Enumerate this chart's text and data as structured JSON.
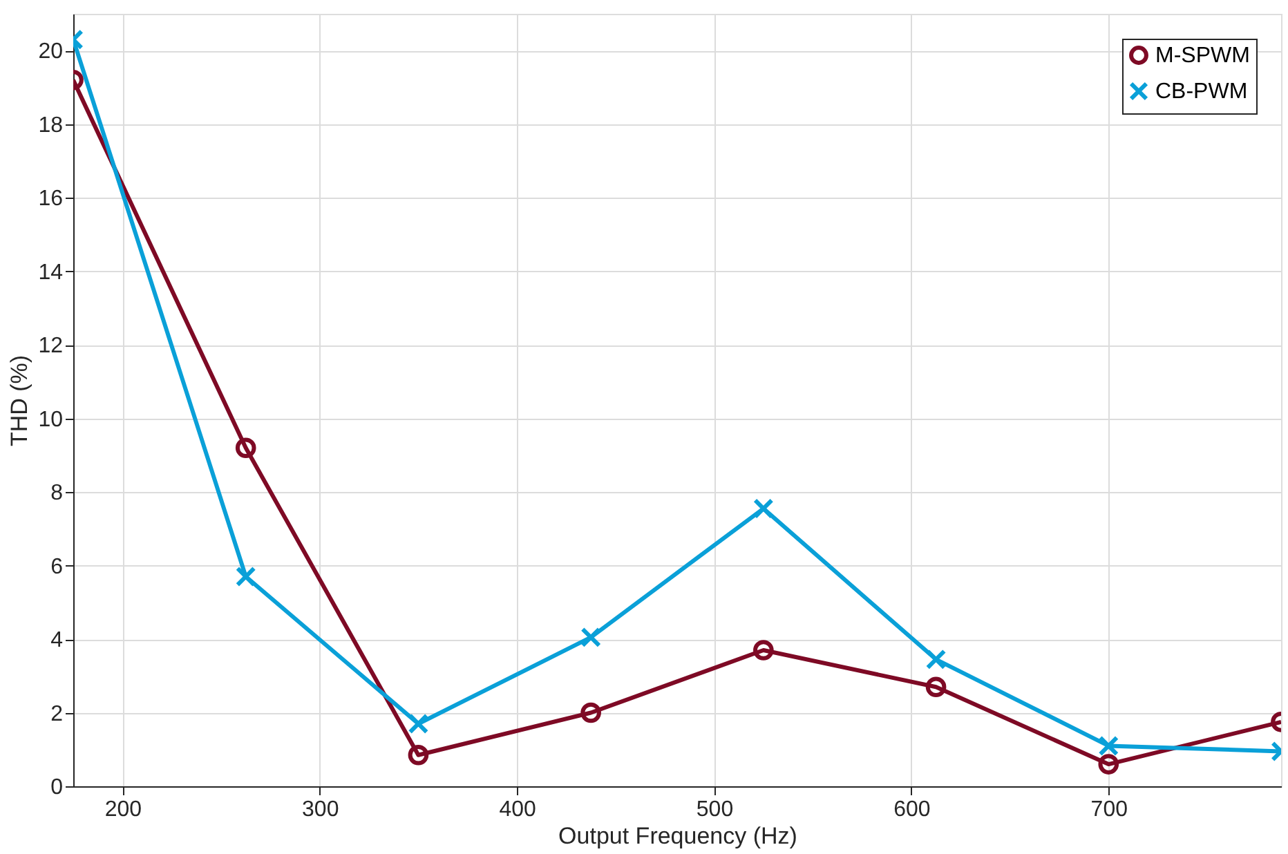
{
  "chart_data": {
    "type": "line",
    "xlabel": "Output Frequency (Hz)",
    "ylabel": "THD (%)",
    "x": [
      175,
      262.5,
      350,
      437.5,
      525,
      612.5,
      700,
      787.5
    ],
    "series": [
      {
        "name": "M-SPWM",
        "color": "#7e0a25",
        "marker": "circle",
        "values": [
          19.2,
          9.2,
          0.85,
          2.0,
          3.7,
          2.7,
          0.6,
          1.75
        ]
      },
      {
        "name": "CB-PWM",
        "color": "#0aa0d8",
        "marker": "cross",
        "values": [
          20.3,
          5.7,
          1.7,
          4.05,
          7.55,
          3.45,
          1.1,
          0.95
        ]
      }
    ],
    "xlim": [
      175,
      787.5
    ],
    "xticks": [
      200,
      300,
      400,
      500,
      600,
      700
    ],
    "ylim": [
      0,
      21
    ],
    "yticks": [
      0,
      2,
      4,
      6,
      8,
      10,
      12,
      14,
      16,
      18,
      20
    ],
    "grid": true,
    "legend": "top right",
    "line_style": "solid"
  }
}
